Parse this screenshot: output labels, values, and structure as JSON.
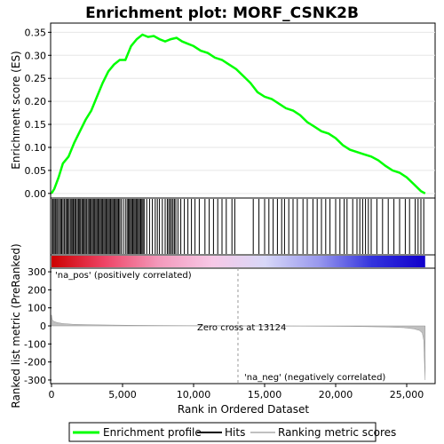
{
  "chart_data": {
    "type": "line",
    "title": "Enrichment plot: MORF_CSNK2B",
    "xlabel": "Rank in Ordered Dataset",
    "x_ticks": [
      0,
      5000,
      10000,
      15000,
      20000,
      25000
    ],
    "x_tick_labels": [
      "0",
      "5,000",
      "10,000",
      "15,000",
      "20,000",
      "25,000"
    ],
    "xlim": [
      0,
      27000
    ],
    "top_panel": {
      "ylabel": "Enrichment score (ES)",
      "ylim": [
        -0.01,
        0.37
      ],
      "y_ticks": [
        0.0,
        0.05,
        0.1,
        0.15,
        0.2,
        0.25,
        0.3,
        0.35
      ],
      "y_tick_labels": [
        "0.00",
        "0.05",
        "0.10",
        "0.15",
        "0.20",
        "0.25",
        "0.30",
        "0.35"
      ],
      "series": [
        {
          "name": "Enrichment profile",
          "color": "#00ff00",
          "x": [
            0,
            200,
            500,
            800,
            1200,
            1600,
            2000,
            2400,
            2800,
            3200,
            3600,
            4000,
            4400,
            4800,
            5200,
            5600,
            6000,
            6400,
            6800,
            7200,
            7600,
            8000,
            8400,
            8800,
            9200,
            9600,
            10000,
            10500,
            11000,
            11500,
            12000,
            12500,
            13000,
            13500,
            14000,
            14500,
            15000,
            15500,
            16000,
            16500,
            17000,
            17500,
            18000,
            18500,
            19000,
            19500,
            20000,
            20500,
            21000,
            21500,
            22000,
            22500,
            23000,
            23500,
            24000,
            24500,
            25000,
            25500,
            26000,
            26300
          ],
          "y": [
            0.0,
            0.01,
            0.035,
            0.065,
            0.08,
            0.11,
            0.135,
            0.16,
            0.18,
            0.21,
            0.24,
            0.265,
            0.28,
            0.29,
            0.29,
            0.32,
            0.335,
            0.345,
            0.34,
            0.342,
            0.335,
            0.33,
            0.335,
            0.338,
            0.33,
            0.325,
            0.32,
            0.31,
            0.305,
            0.295,
            0.29,
            0.28,
            0.27,
            0.255,
            0.24,
            0.22,
            0.21,
            0.205,
            0.195,
            0.185,
            0.18,
            0.17,
            0.155,
            0.145,
            0.135,
            0.13,
            0.12,
            0.105,
            0.095,
            0.09,
            0.085,
            0.08,
            0.072,
            0.06,
            0.05,
            0.045,
            0.035,
            0.02,
            0.005,
            0.0
          ]
        }
      ]
    },
    "hits_panel": {
      "series_name": "Hits",
      "hit_positions": [
        50,
        120,
        200,
        290,
        370,
        450,
        560,
        640,
        720,
        810,
        900,
        1000,
        1080,
        1150,
        1240,
        1330,
        1420,
        1500,
        1560,
        1650,
        1730,
        1820,
        1900,
        1980,
        2050,
        2140,
        2220,
        2300,
        2380,
        2460,
        2560,
        2640,
        2720,
        2800,
        2880,
        2960,
        3040,
        3120,
        3200,
        3280,
        3360,
        3440,
        3520,
        3600,
        3680,
        3760,
        3840,
        3920,
        4000,
        4080,
        4160,
        4240,
        4320,
        4400,
        4480,
        4560,
        4640,
        4720,
        4800,
        4900,
        5050,
        5200,
        5320,
        5400,
        5480,
        5560,
        5640,
        5720,
        5800,
        5880,
        5960,
        6040,
        6120,
        6200,
        6280,
        6360,
        6440,
        6520,
        6700,
        6900,
        7100,
        7300,
        7450,
        7600,
        7800,
        8000,
        8150,
        8250,
        8350,
        8450,
        8550,
        8650,
        8750,
        8900,
        9100,
        9350,
        9600,
        9850,
        10100,
        10400,
        10800,
        11100,
        11400,
        11700,
        12000,
        12300,
        12700,
        12900,
        14200,
        14600,
        15000,
        15300,
        15600,
        15900,
        16200,
        16400,
        16700,
        17000,
        17300,
        17700,
        18000,
        18400,
        18700,
        19000,
        19300,
        19600,
        20000,
        20300,
        20600,
        20800,
        21200,
        21500,
        21700,
        21900,
        22100,
        22300,
        22500,
        22900,
        23300,
        23700,
        24100,
        24500,
        24900,
        25200,
        25600,
        25800,
        26000,
        26200
      ]
    },
    "metric_panel": {
      "ylabel": "Ranked list metric (PreRanked)",
      "series_name": "Ranking metric scores",
      "color": "#c0c0c0",
      "ylim": [
        -320,
        320
      ],
      "y_ticks": [
        -300,
        -200,
        -100,
        0,
        100,
        200,
        300
      ],
      "y_tick_labels": [
        "-300",
        "-200",
        "-100",
        "0",
        "100",
        "200",
        "300"
      ],
      "x": [
        0,
        50,
        150,
        400,
        800,
        1500,
        3000,
        6000,
        10000,
        13124,
        17000,
        21000,
        23500,
        24800,
        25500,
        25900,
        26100,
        26200,
        26250,
        26300
      ],
      "y": [
        60,
        35,
        25,
        18,
        13,
        9,
        6,
        3,
        1,
        0,
        -1,
        -3,
        -6,
        -10,
        -16,
        -25,
        -40,
        -80,
        -200,
        -300
      ],
      "zero_cross_label": "Zero cross at 13124",
      "pos_label": "'na_pos' (positively correlated)",
      "neg_label": "'na_neg' (negatively correlated)",
      "pos_label_color": "#cc0000",
      "neg_label_color": "#0000aa"
    },
    "legend": {
      "placement": "bottom",
      "items": [
        {
          "label": "Enrichment profile",
          "color": "#00ff00"
        },
        {
          "label": "Hits",
          "color": "#000000"
        },
        {
          "label": "Ranking metric scores",
          "color": "#c0c0c0"
        }
      ]
    },
    "colorbar": {
      "colors": [
        "#cc0000",
        "#ee4466",
        "#f399bb",
        "#f7c8e6",
        "#d8d8f8",
        "#9999ee",
        "#3333dd",
        "#1100cc"
      ]
    }
  }
}
